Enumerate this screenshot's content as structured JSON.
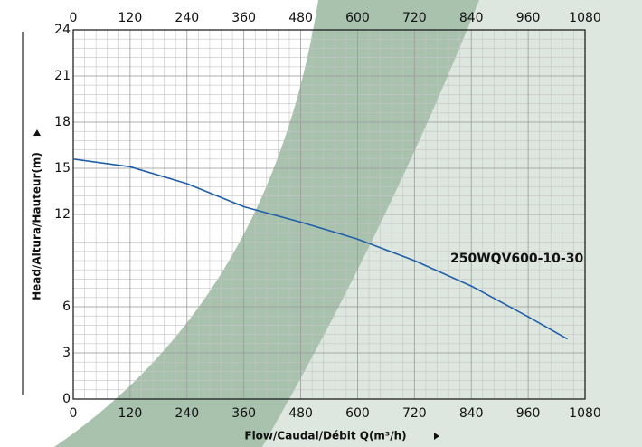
{
  "chart_data": {
    "type": "line",
    "x_label": "Flow/Caudal/Débit Q(m³/h)",
    "y_label": "Head/Altura/Hauteur(m)",
    "series": [
      {
        "name": "250WQV600-10-30",
        "color": "#1f5fa8",
        "x": [
          0,
          120,
          240,
          360,
          480,
          600,
          720,
          840,
          960,
          1043
        ],
        "values": [
          15.6,
          15.1,
          14.0,
          12.5,
          11.5,
          10.4,
          9.0,
          7.35,
          5.35,
          3.9
        ]
      }
    ],
    "xlim": [
      0,
      1080
    ],
    "xticks": [
      0,
      120,
      240,
      360,
      480,
      600,
      720,
      840,
      960,
      1080
    ],
    "ylim": [
      0,
      24
    ],
    "yticks": [
      0,
      3,
      6,
      12,
      15,
      18,
      21,
      24
    ],
    "grid": true
  }
}
